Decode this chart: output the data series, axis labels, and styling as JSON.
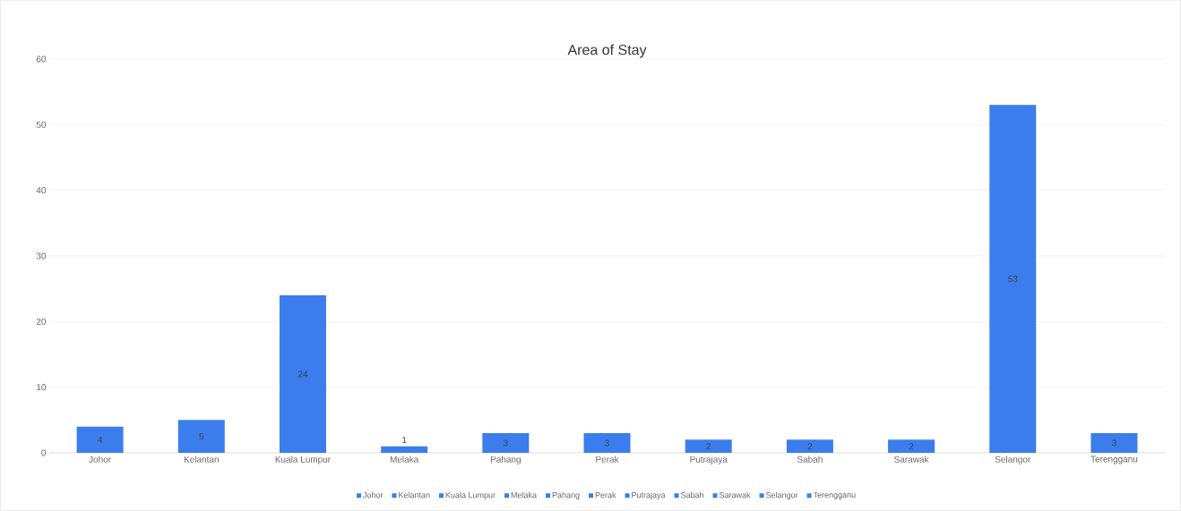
{
  "chart_data": {
    "type": "bar",
    "title": "Area of Stay",
    "categories": [
      "Johor",
      "Kelantan",
      "Kuala Lumpur",
      "Melaka",
      "Pahang",
      "Perak",
      "Putrajaya",
      "Sabah",
      "Sarawak",
      "Selangor",
      "Terengganu"
    ],
    "series": [
      {
        "name": "Johor",
        "color": "#3b7ded",
        "values": [
          4,
          null,
          null,
          null,
          null,
          null,
          null,
          null,
          null,
          null,
          null
        ]
      },
      {
        "name": "Kelantan",
        "color": "#3b7ded",
        "values": [
          null,
          5,
          null,
          null,
          null,
          null,
          null,
          null,
          null,
          null,
          null
        ]
      },
      {
        "name": "Kuala Lumpur",
        "color": "#3b7ded",
        "values": [
          null,
          null,
          24,
          null,
          null,
          null,
          null,
          null,
          null,
          null,
          null
        ]
      },
      {
        "name": "Melaka",
        "color": "#3b7ded",
        "values": [
          null,
          null,
          null,
          1,
          null,
          null,
          null,
          null,
          null,
          null,
          null
        ]
      },
      {
        "name": "Pahang",
        "color": "#3b7ded",
        "values": [
          null,
          null,
          null,
          null,
          3,
          null,
          null,
          null,
          null,
          null,
          null
        ]
      },
      {
        "name": "Perak",
        "color": "#3b7ded",
        "values": [
          null,
          null,
          null,
          null,
          null,
          3,
          null,
          null,
          null,
          null,
          null
        ]
      },
      {
        "name": "Putrajaya",
        "color": "#3b7ded",
        "values": [
          null,
          null,
          null,
          null,
          null,
          null,
          2,
          null,
          null,
          null,
          null
        ]
      },
      {
        "name": "Sabah",
        "color": "#3b7ded",
        "values": [
          null,
          null,
          null,
          null,
          null,
          null,
          null,
          2,
          null,
          null,
          null
        ]
      },
      {
        "name": "Sarawak",
        "color": "#3b7ded",
        "values": [
          null,
          null,
          null,
          null,
          null,
          null,
          null,
          null,
          2,
          null,
          null
        ]
      },
      {
        "name": "Selangor",
        "color": "#3b7ded",
        "values": [
          null,
          null,
          null,
          null,
          null,
          null,
          null,
          null,
          null,
          53,
          null
        ]
      },
      {
        "name": "Terengganu",
        "color": "#3b7ded",
        "values": [
          null,
          null,
          null,
          null,
          null,
          null,
          null,
          null,
          null,
          null,
          3
        ]
      }
    ],
    "ylim": [
      0,
      60
    ],
    "yticks": [
      0,
      10,
      20,
      30,
      40,
      50,
      60
    ],
    "grid": "y",
    "legend": "bottom",
    "data_labels": true
  }
}
